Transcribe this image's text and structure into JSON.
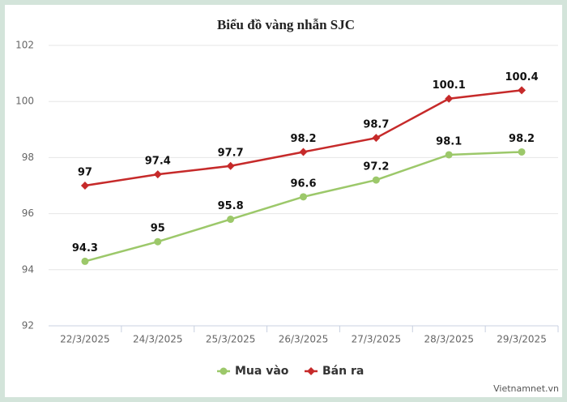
{
  "chart_data": {
    "type": "line",
    "title": "Biểu đồ vàng nhẫn SJC",
    "categories": [
      "22/3/2025",
      "24/3/2025",
      "25/3/2025",
      "26/3/2025",
      "27/3/2025",
      "28/3/2025",
      "29/3/2025"
    ],
    "series": [
      {
        "name": "Mua vào",
        "color": "#9cc86a",
        "marker": "circle",
        "values": [
          94.3,
          95,
          95.8,
          96.6,
          97.2,
          98.1,
          98.2
        ]
      },
      {
        "name": "Bán ra",
        "color": "#c62a2a",
        "marker": "diamond",
        "values": [
          97,
          97.4,
          97.7,
          98.2,
          98.7,
          100.1,
          100.4
        ]
      }
    ],
    "ylim": [
      92,
      102
    ],
    "yticks": [
      92,
      94,
      96,
      98,
      100,
      102
    ],
    "grid": true,
    "legend": "bottom",
    "watermark": "Vietnamnet.vn"
  }
}
